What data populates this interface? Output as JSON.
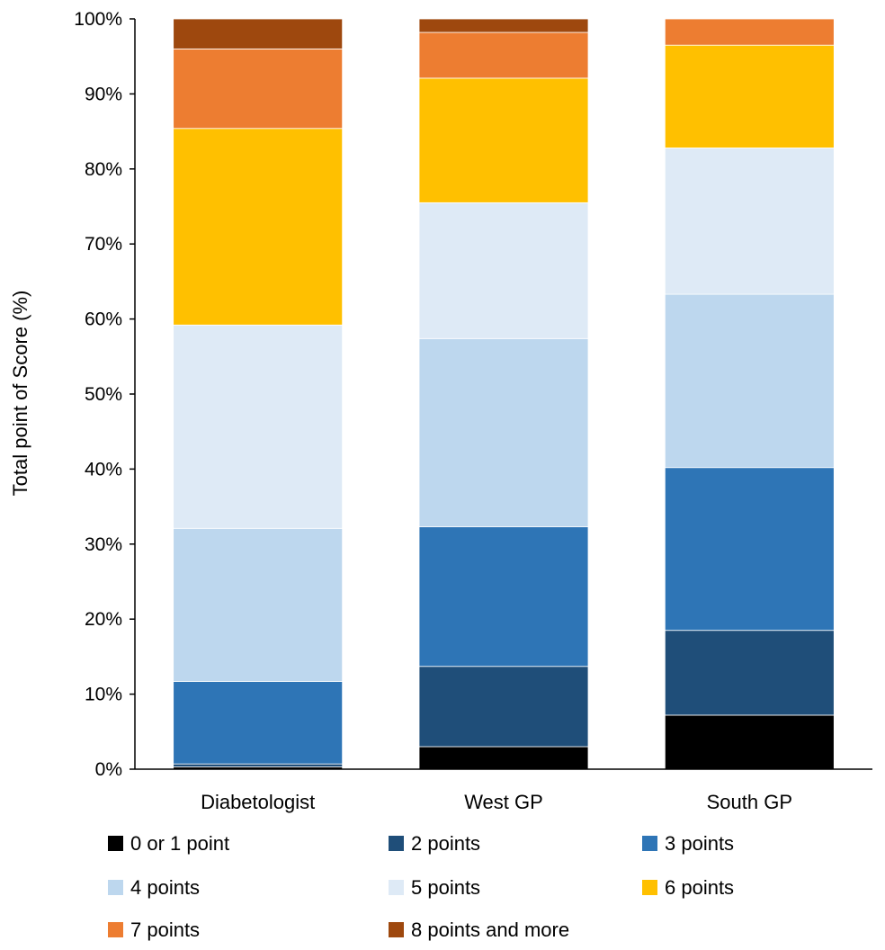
{
  "chart_data": {
    "type": "stacked-bar",
    "title": "",
    "xlabel": "",
    "ylabel": "Total point of Score (%)",
    "ylim": [
      0,
      100
    ],
    "yticks": [
      "0%",
      "10%",
      "20%",
      "30%",
      "40%",
      "50%",
      "60%",
      "70%",
      "80%",
      "90%",
      "100%"
    ],
    "categories": [
      "Diabetologist",
      "West GP",
      "South GP"
    ],
    "legend_position": "bottom",
    "grid": false,
    "series": [
      {
        "name": "0 or 1 point",
        "color": "#000000",
        "values": [
          0.3,
          3.0,
          7.2
        ]
      },
      {
        "name": "2 points",
        "color": "#1F4E79",
        "values": [
          0.4,
          10.7,
          11.3
        ]
      },
      {
        "name": "3 points",
        "color": "#2E75B6",
        "values": [
          11.0,
          18.6,
          21.7
        ]
      },
      {
        "name": "4 points",
        "color": "#BDD7EE",
        "values": [
          20.4,
          25.1,
          23.1
        ]
      },
      {
        "name": "5 points",
        "color": "#DEEAF6",
        "values": [
          27.1,
          18.1,
          19.5
        ]
      },
      {
        "name": "6 points",
        "color": "#FFC000",
        "values": [
          26.2,
          16.6,
          13.7
        ]
      },
      {
        "name": "7 points",
        "color": "#ED7D31",
        "values": [
          10.6,
          6.1,
          3.5
        ]
      },
      {
        "name": "8 points and more",
        "color": "#9E480E",
        "values": [
          4.0,
          1.8,
          0.0
        ]
      }
    ]
  }
}
